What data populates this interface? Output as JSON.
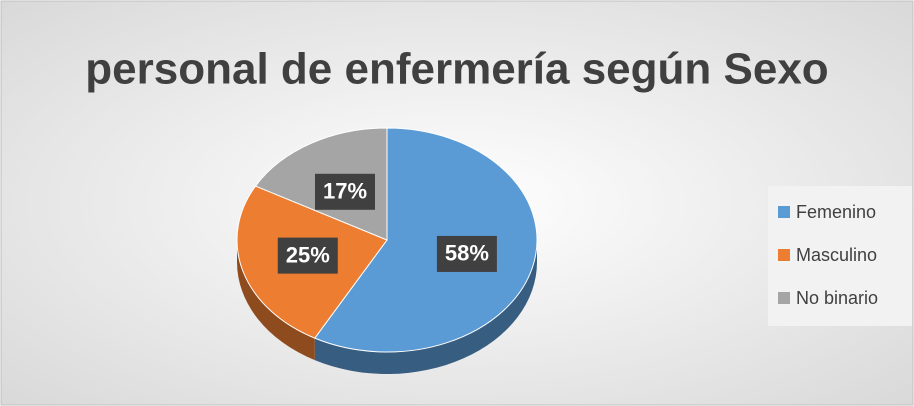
{
  "chart_data": {
    "type": "pie",
    "title": "personal de enfermería según Sexo",
    "categories": [
      "Femenino",
      "Masculino",
      "No binario"
    ],
    "values": [
      58,
      25,
      17
    ],
    "value_labels": [
      "58%",
      "25%",
      "17%"
    ],
    "colors": [
      "#5b9bd5",
      "#ed7d31",
      "#a5a5a5"
    ],
    "legend": "right"
  }
}
